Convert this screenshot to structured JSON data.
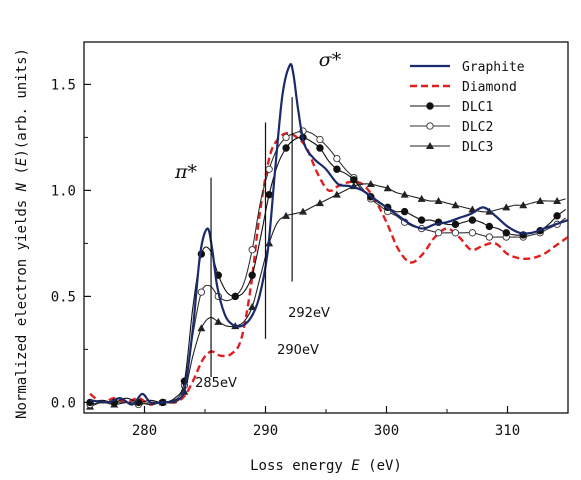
{
  "chart_data": {
    "type": "line",
    "title": "",
    "xlabel_prefix": "Loss energy ",
    "xlabel_var": "E",
    "xlabel_unit": " (eV)",
    "ylabel_prefix": "Normalized electron yields ",
    "ylabel_var_n": "N",
    "ylabel_var_e": "E",
    "ylabel_unit": "(arb. units)",
    "xlim": [
      275,
      315
    ],
    "ylim": [
      -0.05,
      1.7
    ],
    "xticks": [
      280,
      290,
      300,
      310
    ],
    "yticks": [
      0.0,
      0.5,
      1.0,
      1.5
    ],
    "ytick_labels": [
      "0.0",
      "0.5",
      "1.0",
      "1.5"
    ],
    "grid": false,
    "legend_position": "top-right",
    "series": [
      {
        "name": "Graphite",
        "color": "#1b2a6b",
        "style": "solid",
        "marker": "none",
        "x": [
          275.5,
          277,
          278,
          279,
          279.8,
          280.5,
          281.5,
          282.5,
          283.3,
          284,
          284.6,
          285.2,
          285.6,
          286,
          286.6,
          287.2,
          288,
          288.8,
          289.5,
          290.2,
          290.8,
          291.4,
          292.0,
          292.3,
          292.7,
          293.2,
          294,
          295,
          296,
          297,
          298,
          299,
          300,
          301,
          302,
          303,
          304,
          305,
          306,
          307,
          308,
          309,
          310,
          311,
          312,
          313,
          314,
          315
        ],
        "y": [
          0.01,
          0.0,
          0.02,
          -0.01,
          0.04,
          0.0,
          0.0,
          0.01,
          0.06,
          0.35,
          0.7,
          0.82,
          0.72,
          0.55,
          0.42,
          0.37,
          0.36,
          0.4,
          0.5,
          0.72,
          1.1,
          1.45,
          1.59,
          1.55,
          1.38,
          1.22,
          1.15,
          1.1,
          1.03,
          1.02,
          1.0,
          0.96,
          0.92,
          0.88,
          0.84,
          0.82,
          0.84,
          0.85,
          0.87,
          0.89,
          0.92,
          0.88,
          0.83,
          0.8,
          0.8,
          0.82,
          0.84,
          0.86
        ]
      },
      {
        "name": "Diamond",
        "color": "#e02020",
        "style": "dashed",
        "marker": "none",
        "x": [
          275.5,
          276.5,
          277.5,
          278.5,
          279.5,
          280.5,
          281.5,
          282.5,
          283.3,
          284,
          284.8,
          285.5,
          286.3,
          287.2,
          288,
          288.8,
          289.5,
          290.3,
          291,
          291.8,
          292.6,
          293.4,
          294.3,
          295.2,
          296,
          297,
          298,
          299,
          300,
          301,
          302,
          303,
          304,
          305,
          306,
          307,
          308,
          309,
          310,
          311,
          312,
          313,
          314,
          315
        ],
        "y": [
          0.04,
          0.0,
          0.02,
          0.0,
          0.02,
          -0.01,
          0.01,
          0.0,
          0.03,
          0.1,
          0.2,
          0.24,
          0.22,
          0.23,
          0.3,
          0.55,
          0.88,
          1.15,
          1.24,
          1.27,
          1.25,
          1.2,
          1.08,
          1.0,
          1.02,
          1.04,
          1.03,
          0.96,
          0.85,
          0.72,
          0.66,
          0.7,
          0.78,
          0.82,
          0.78,
          0.72,
          0.74,
          0.75,
          0.7,
          0.68,
          0.68,
          0.7,
          0.74,
          0.78
        ]
      },
      {
        "name": "DLC1",
        "color": "#111111",
        "style": "solid",
        "marker": "filled-circle",
        "x": [
          275.5,
          276.5,
          277.5,
          278.5,
          279.5,
          280.5,
          281.5,
          282.5,
          283.3,
          284,
          284.7,
          285.4,
          286.1,
          286.8,
          287.5,
          288.2,
          288.9,
          289.6,
          290.3,
          291,
          291.7,
          292.4,
          293.1,
          293.8,
          294.5,
          295.2,
          295.9,
          296.6,
          297.3,
          298,
          298.7,
          299.4,
          300.1,
          300.8,
          301.5,
          302.2,
          302.9,
          303.6,
          304.3,
          305,
          305.7,
          306.4,
          307.1,
          307.8,
          308.5,
          309.2,
          309.9,
          310.6,
          311.3,
          312,
          312.7,
          313.4,
          314.1,
          314.8
        ],
        "y": [
          0.0,
          0.01,
          0.0,
          0.02,
          0.0,
          0.01,
          0.0,
          0.02,
          0.1,
          0.45,
          0.7,
          0.72,
          0.6,
          0.52,
          0.5,
          0.52,
          0.6,
          0.78,
          0.98,
          1.12,
          1.2,
          1.24,
          1.25,
          1.23,
          1.2,
          1.14,
          1.1,
          1.08,
          1.05,
          1.0,
          0.97,
          0.94,
          0.92,
          0.9,
          0.9,
          0.88,
          0.86,
          0.86,
          0.85,
          0.84,
          0.84,
          0.85,
          0.86,
          0.85,
          0.83,
          0.82,
          0.8,
          0.79,
          0.79,
          0.8,
          0.81,
          0.84,
          0.88,
          0.91
        ]
      },
      {
        "name": "DLC2",
        "color": "#333333",
        "style": "solid",
        "marker": "open-circle",
        "x": [
          275.5,
          276.5,
          277.5,
          278.5,
          279.5,
          280.5,
          281.5,
          282.5,
          283.3,
          284,
          284.7,
          285.4,
          286.1,
          286.8,
          287.5,
          288.2,
          288.9,
          289.6,
          290.3,
          291,
          291.7,
          292.4,
          293.1,
          293.8,
          294.5,
          295.2,
          295.9,
          296.6,
          297.3,
          298,
          298.7,
          299.4,
          300.1,
          300.8,
          301.5,
          302.2,
          302.9,
          303.6,
          304.3,
          305,
          305.7,
          306.4,
          307.1,
          307.8,
          308.5,
          309.2,
          309.9,
          310.6,
          311.3,
          312,
          312.7,
          313.4,
          314.1,
          314.8
        ],
        "y": [
          -0.01,
          0.0,
          0.0,
          0.0,
          -0.01,
          0.0,
          0.0,
          0.01,
          0.08,
          0.32,
          0.52,
          0.55,
          0.5,
          0.48,
          0.5,
          0.56,
          0.72,
          0.95,
          1.1,
          1.2,
          1.25,
          1.27,
          1.28,
          1.27,
          1.24,
          1.2,
          1.15,
          1.1,
          1.06,
          1.01,
          0.96,
          0.93,
          0.9,
          0.88,
          0.85,
          0.83,
          0.82,
          0.81,
          0.8,
          0.8,
          0.8,
          0.8,
          0.8,
          0.79,
          0.78,
          0.78,
          0.78,
          0.78,
          0.78,
          0.79,
          0.8,
          0.82,
          0.84,
          0.87
        ]
      },
      {
        "name": "DLC3",
        "color": "#222222",
        "style": "solid",
        "marker": "filled-triangle",
        "x": [
          275.5,
          276.5,
          277.5,
          278.5,
          279.5,
          280.5,
          281.5,
          282.5,
          283.3,
          284,
          284.7,
          285.4,
          286.1,
          286.8,
          287.5,
          288.2,
          288.9,
          289.6,
          290.3,
          291,
          291.7,
          292.4,
          293.1,
          293.8,
          294.5,
          295.2,
          295.9,
          296.6,
          297.3,
          298,
          298.7,
          299.4,
          300.1,
          300.8,
          301.5,
          302.2,
          302.9,
          303.6,
          304.3,
          305,
          305.7,
          306.4,
          307.1,
          307.8,
          308.5,
          309.2,
          309.9,
          310.6,
          311.3,
          312,
          312.7,
          313.4,
          314.1,
          314.8
        ],
        "y": [
          -0.02,
          0.0,
          -0.01,
          0.0,
          0.0,
          -0.01,
          0.0,
          0.0,
          0.05,
          0.22,
          0.35,
          0.4,
          0.38,
          0.36,
          0.36,
          0.38,
          0.45,
          0.6,
          0.75,
          0.85,
          0.88,
          0.89,
          0.9,
          0.92,
          0.94,
          0.96,
          0.98,
          1.0,
          1.02,
          1.03,
          1.03,
          1.02,
          1.01,
          0.99,
          0.98,
          0.97,
          0.96,
          0.95,
          0.95,
          0.94,
          0.93,
          0.92,
          0.91,
          0.9,
          0.9,
          0.91,
          0.92,
          0.93,
          0.93,
          0.94,
          0.95,
          0.95,
          0.95,
          0.96
        ]
      }
    ],
    "annotations": [
      {
        "label": "σ*",
        "kind": "greek"
      },
      {
        "label": "π*",
        "kind": "greek"
      },
      {
        "label": "285eV",
        "kind": "energy",
        "x": 285.5
      },
      {
        "label": "290eV",
        "kind": "energy",
        "x": 290.0
      },
      {
        "label": "292eV",
        "kind": "energy",
        "x": 292.2
      }
    ]
  }
}
